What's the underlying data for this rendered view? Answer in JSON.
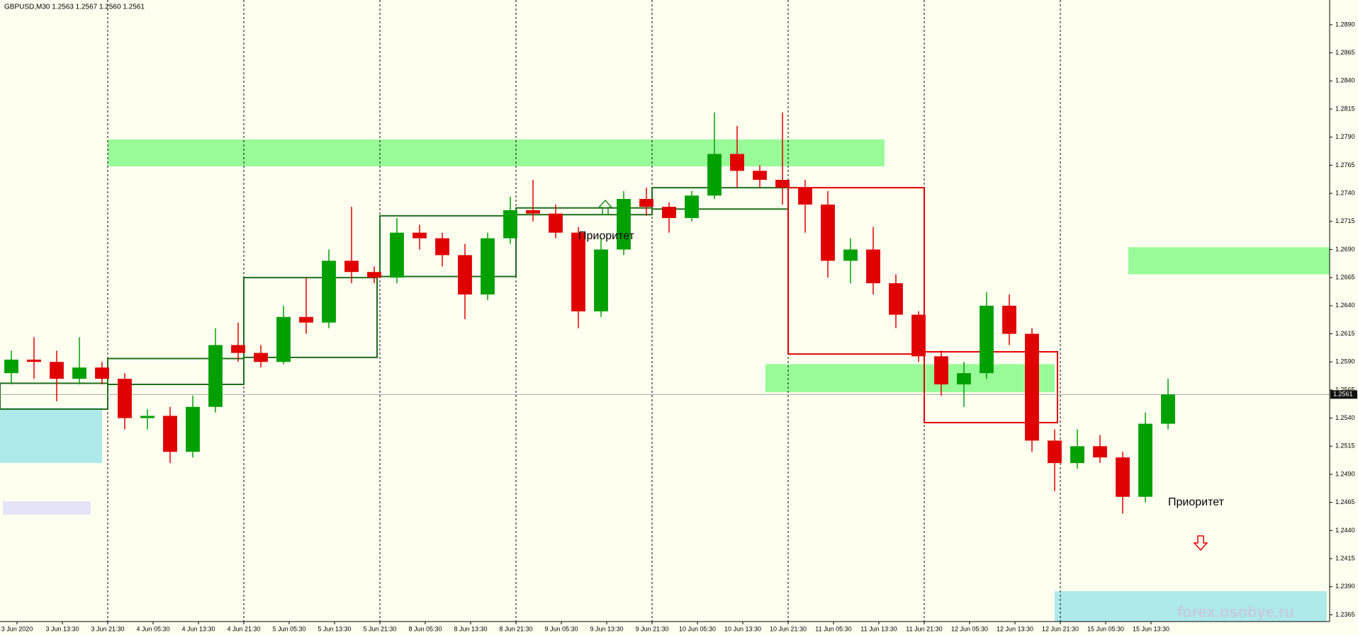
{
  "chart_data": {
    "type": "candlestick",
    "title": "GBPUSD,M30  1.2563 1.2567 1.2560 1.2561",
    "watermark": "forex.osobye.ru",
    "annotations": [
      "Приоритет",
      "Приоритет"
    ],
    "up_color": "#00a000",
    "down_color": "#e00000",
    "x": [
      0,
      8,
      16,
      24,
      32,
      40,
      48,
      56,
      64,
      72,
      80,
      88,
      96,
      104,
      112,
      120,
      128,
      136,
      144,
      152,
      160,
      168,
      176,
      184,
      192,
      200,
      208,
      216,
      224,
      232,
      240,
      248,
      256,
      264,
      272,
      280,
      288,
      296,
      304,
      312,
      320,
      328,
      336,
      344,
      352,
      360,
      368,
      376,
      384,
      392,
      400,
      408
    ],
    "open": [
      1.258,
      1.2592,
      1.259,
      1.2575,
      1.2585,
      1.2575,
      1.254,
      1.2542,
      1.251,
      1.255,
      1.2605,
      1.2598,
      1.259,
      1.263,
      1.2625,
      1.268,
      1.267,
      1.2665,
      1.2705,
      1.27,
      1.2685,
      1.265,
      1.27,
      1.2725,
      1.2722,
      1.2705,
      1.2635,
      1.269,
      1.2735,
      1.2728,
      1.2718,
      1.2738,
      1.2775,
      1.276,
      1.2752,
      1.2745,
      1.273,
      1.268,
      1.269,
      1.266,
      1.2632,
      1.2595,
      1.257,
      1.258,
      1.264,
      1.2615,
      1.252,
      1.25,
      1.2515,
      1.2505,
      1.247,
      1.2535
    ],
    "high": [
      1.26,
      1.2612,
      1.26,
      1.2612,
      1.259,
      1.258,
      1.2548,
      1.255,
      1.256,
      1.262,
      1.2625,
      1.2605,
      1.264,
      1.2665,
      1.269,
      1.2728,
      1.2675,
      1.2718,
      1.2712,
      1.2705,
      1.2695,
      1.2705,
      1.2737,
      1.2752,
      1.273,
      1.271,
      1.27,
      1.2742,
      1.2745,
      1.2732,
      1.2742,
      1.2812,
      1.28,
      1.2765,
      1.2812,
      1.2752,
      1.2742,
      1.27,
      1.271,
      1.2668,
      1.2635,
      1.26,
      1.259,
      1.2652,
      1.265,
      1.262,
      1.253,
      1.253,
      1.2525,
      1.251,
      1.2545,
      1.2575
    ],
    "low": [
      1.257,
      1.2575,
      1.2555,
      1.257,
      1.257,
      1.253,
      1.253,
      1.25,
      1.2505,
      1.2545,
      1.259,
      1.2585,
      1.2588,
      1.2615,
      1.262,
      1.266,
      1.266,
      1.266,
      1.269,
      1.2675,
      1.2628,
      1.2645,
      1.2695,
      1.2715,
      1.27,
      1.262,
      1.263,
      1.2685,
      1.272,
      1.2705,
      1.2715,
      1.2735,
      1.2745,
      1.2745,
      1.273,
      1.2705,
      1.2665,
      1.266,
      1.265,
      1.262,
      1.259,
      1.256,
      1.255,
      1.2575,
      1.2605,
      1.251,
      1.2475,
      1.2495,
      1.25,
      1.2455,
      1.2465,
      1.253
    ],
    "close": [
      1.2592,
      1.259,
      1.2575,
      1.2585,
      1.2575,
      1.254,
      1.2542,
      1.251,
      1.255,
      1.2605,
      1.2598,
      1.259,
      1.263,
      1.2625,
      1.268,
      1.267,
      1.2665,
      1.2705,
      1.27,
      1.2685,
      1.265,
      1.27,
      1.2725,
      1.2722,
      1.2705,
      1.2635,
      1.269,
      1.2735,
      1.2728,
      1.2718,
      1.2738,
      1.2775,
      1.276,
      1.2752,
      1.2745,
      1.273,
      1.268,
      1.269,
      1.266,
      1.2632,
      1.2595,
      1.257,
      1.258,
      1.264,
      1.2615,
      1.252,
      1.25,
      1.2515,
      1.2505,
      1.247,
      1.2535,
      1.2561
    ],
    "last_price": 1.2561,
    "zones": [
      {
        "x": [
          38,
          312
        ],
        "y": [
          1.2764,
          1.2788
        ],
        "color": "#98fb98"
      },
      {
        "x": [
          0,
          36
        ],
        "y": [
          1.25,
          1.2549
        ],
        "color": "#aeeaea"
      },
      {
        "x": [
          1,
          32
        ],
        "y": [
          1.2454,
          1.2466
        ],
        "color": "#e4e4f8"
      },
      {
        "x": [
          398,
          469
        ],
        "y": [
          1.2668,
          1.2692
        ],
        "color": "#98fb98"
      },
      {
        "x": [
          270,
          372
        ],
        "y": [
          1.2563,
          1.2588
        ],
        "color": "#98fb98"
      },
      {
        "x": [
          372,
          468
        ],
        "y": [
          1.2359,
          1.2386
        ],
        "color": "#aeeaea"
      }
    ],
    "boxes": [
      {
        "x": [
          0,
          38
        ],
        "y": [
          1.2548,
          1.2571
        ],
        "color": "#1e6b1e"
      },
      {
        "x": [
          38,
          86
        ],
        "y": [
          1.257,
          1.2593
        ],
        "color": "#1e6b1e"
      },
      {
        "x": [
          86,
          133
        ],
        "y": [
          1.2594,
          1.2665
        ],
        "color": "#1e6b1e"
      },
      {
        "x": [
          134,
          182
        ],
        "y": [
          1.2666,
          1.272
        ],
        "color": "#1e6b1e"
      },
      {
        "x": [
          182,
          230
        ],
        "y": [
          1.2721,
          1.2727
        ],
        "color": "#1e6b1e"
      },
      {
        "x": [
          230,
          278
        ],
        "y": [
          1.2726,
          1.2745
        ],
        "color": "#1e6b1e"
      },
      {
        "x": [
          278,
          326
        ],
        "y": [
          1.2597,
          1.2745
        ],
        "color": "#e00000"
      },
      {
        "x": [
          326,
          373
        ],
        "y": [
          1.2536,
          1.2599
        ],
        "color": "#e00000"
      }
    ],
    "xlim": [
      0,
      469
    ],
    "ylim": [
      1.2359,
      1.2912
    ],
    "xticks": [
      {
        "value": 6,
        "label": "3 Jun 2020"
      },
      {
        "value": 22,
        "label": "3 Jun 13:30"
      },
      {
        "value": 38,
        "label": "3 Jun 21:30"
      },
      {
        "value": 54,
        "label": "4 Jun 05:30"
      },
      {
        "value": 70,
        "label": "4 Jun 13:30"
      },
      {
        "value": 86,
        "label": "4 Jun 21:30"
      },
      {
        "value": 102,
        "label": "5 Jun 05:30"
      },
      {
        "value": 118,
        "label": "5 Jun 13:30"
      },
      {
        "value": 134,
        "label": "5 Jun 21:30"
      },
      {
        "value": 150,
        "label": "8 Jun 05:30"
      },
      {
        "value": 166,
        "label": "8 Jun 13:30"
      },
      {
        "value": 182,
        "label": "8 Jun 21:30"
      },
      {
        "value": 198,
        "label": "9 Jun 05:30"
      },
      {
        "value": 214,
        "label": "9 Jun 13:30"
      },
      {
        "value": 230,
        "label": "9 Jun 21:30"
      },
      {
        "value": 246,
        "label": "10 Jun 05:30"
      },
      {
        "value": 262,
        "label": "10 Jun 13:30"
      },
      {
        "value": 278,
        "label": "10 Jun 21:30"
      },
      {
        "value": 294,
        "label": "11 Jun 05:30"
      },
      {
        "value": 310,
        "label": "11 Jun 13:30"
      },
      {
        "value": 326,
        "label": "11 Jun 21:30"
      },
      {
        "value": 342,
        "label": "12 Jun 05:30"
      },
      {
        "value": 358,
        "label": "12 Jun 13:30"
      },
      {
        "value": 374,
        "label": "12 Jun 21:30"
      },
      {
        "value": 390,
        "label": "15 Jun 05:30"
      },
      {
        "value": 406,
        "label": "15 Jun 13:30"
      }
    ],
    "yticks": [
      1.2365,
      {
        "value": 1.239,
        "label": "1.2390"
      },
      1.2415,
      {
        "value": 1.244,
        "label": "1.2440"
      },
      1.2465,
      {
        "value": 1.249,
        "label": "1.2490"
      },
      1.2515,
      {
        "value": 1.254,
        "label": "1.2540"
      },
      1.2565,
      {
        "value": 1.259,
        "label": "1.2590"
      },
      1.2615,
      {
        "value": 1.264,
        "label": "1.2640"
      },
      1.2665,
      {
        "value": 1.269,
        "label": "1.2690"
      },
      1.2715,
      {
        "value": 1.274,
        "label": "1.2740"
      },
      1.2765,
      {
        "value": 1.279,
        "label": "1.2790"
      },
      1.2815,
      {
        "value": 1.284,
        "label": "1.2840"
      },
      1.2865,
      {
        "value": 1.289,
        "label": "1.2890"
      }
    ]
  }
}
